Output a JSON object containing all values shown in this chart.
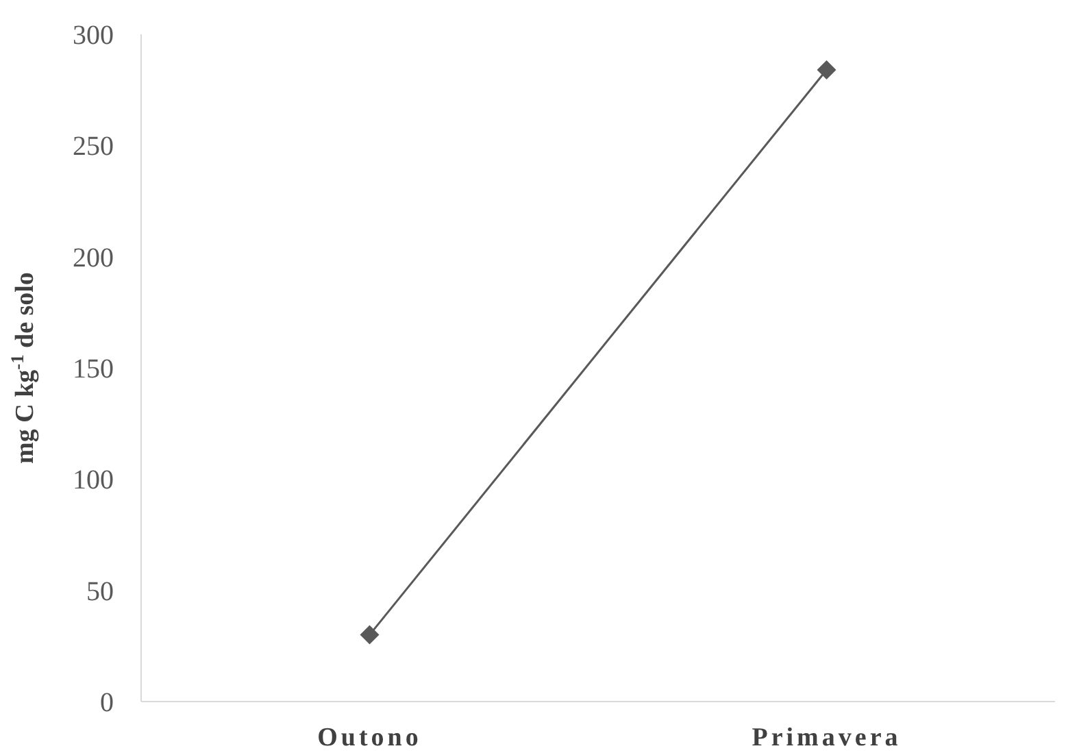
{
  "chart_data": {
    "type": "line",
    "ylabel": "mg C kg$^{-1}$ de solo",
    "categories": [
      "Outono",
      "Primavera"
    ],
    "series": [
      {
        "color": "#595959",
        "values": [
          30,
          284
        ]
      }
    ],
    "ylim": [
      0,
      300
    ],
    "yticks": [
      0,
      50,
      100,
      150,
      200,
      250,
      300
    ],
    "grid": false,
    "marker": "diamond",
    "line_style": "solid"
  }
}
